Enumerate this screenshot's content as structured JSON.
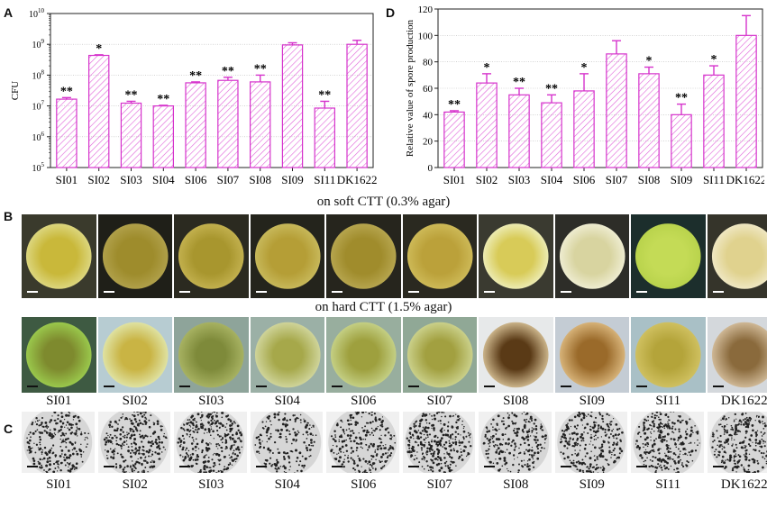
{
  "panels": {
    "a": "A",
    "b": "B",
    "c": "C",
    "d": "D"
  },
  "strains": [
    "SI01",
    "SI02",
    "SI03",
    "SI04",
    "SI06",
    "SI07",
    "SI08",
    "SI09",
    "SI11",
    "DK1622"
  ],
  "captions": {
    "soft": "on soft CTT (0.3% agar)",
    "hard": "on hard CTT (1.5% agar)"
  },
  "colors": {
    "bar_edge": "#d633cc",
    "hatch": "#e060d8",
    "grid": "#bbbbbb"
  },
  "chart_data": [
    {
      "type": "bar",
      "panel": "A",
      "title": "",
      "xlabel": "",
      "ylabel": "CFU",
      "yscale": "log",
      "ylim_exp": [
        5,
        10
      ],
      "ytick_labels": [
        "10^5",
        "10^6",
        "10^7",
        "10^8",
        "10^9",
        "10^10"
      ],
      "categories": [
        "SI01",
        "SI02",
        "SI03",
        "SI04",
        "SI06",
        "SI07",
        "SI08",
        "SI09",
        "SI11",
        "DK1622"
      ],
      "values_log10": [
        7.22,
        8.64,
        7.09,
        7.0,
        7.75,
        7.83,
        7.78,
        8.98,
        6.93,
        9.0
      ],
      "errors_log10": [
        0.05,
        0.02,
        0.06,
        0.02,
        0.03,
        0.1,
        0.22,
        0.07,
        0.22,
        0.13
      ],
      "significance": [
        "**",
        "*",
        "**",
        "**",
        "**",
        "**",
        "**",
        "",
        "**",
        ""
      ]
    },
    {
      "type": "bar",
      "panel": "D",
      "title": "",
      "xlabel": "",
      "ylabel": "Relative value of spore production",
      "ylim": [
        0,
        120
      ],
      "yticks": [
        0,
        20,
        40,
        60,
        80,
        100,
        120
      ],
      "categories": [
        "SI01",
        "SI02",
        "SI03",
        "SI04",
        "SI06",
        "SI07",
        "SI08",
        "SI09",
        "SI11",
        "DK1622"
      ],
      "values": [
        42,
        64,
        55,
        49,
        58,
        86,
        71,
        40,
        70,
        100
      ],
      "errors": [
        1,
        7,
        5,
        6,
        13,
        10,
        5,
        8,
        7,
        15
      ],
      "significance": [
        "**",
        "*",
        "**",
        "**",
        "*",
        "",
        "*",
        "**",
        "*",
        ""
      ]
    }
  ],
  "colonies_soft": [
    {
      "bg": "#3a3a2c",
      "outer": "#dcd67e",
      "inner": "#c9b83a"
    },
    {
      "bg": "#1f1f18",
      "outer": "#b0a04a",
      "inner": "#9e8c2c"
    },
    {
      "bg": "#2b2a20",
      "outer": "#c2b04e",
      "inner": "#a8962e"
    },
    {
      "bg": "#24241c",
      "outer": "#c7b85a",
      "inner": "#b59e36"
    },
    {
      "bg": "#26251d",
      "outer": "#b6a54e",
      "inner": "#a08c2c"
    },
    {
      "bg": "#2a2920",
      "outer": "#cdb957",
      "inner": "#bba13a"
    },
    {
      "bg": "#3a3a30",
      "outer": "#ecebb2",
      "inner": "#d8cb58"
    },
    {
      "bg": "#2d2d28",
      "outer": "#eeecd0",
      "inner": "#d8d4a0"
    },
    {
      "bg": "#1c2e2c",
      "outer": "#b9d34c",
      "inner": "#c4db56"
    },
    {
      "bg": "#35342a",
      "outer": "#efe7c2",
      "inner": "#e0d28e"
    }
  ],
  "colonies_hard": [
    {
      "bg": "#3e5a42",
      "outer": "#9ac84c",
      "inner": "#7e8a2e"
    },
    {
      "bg": "#b7ccd2",
      "outer": "#dfe2a2",
      "inner": "#c9b444"
    },
    {
      "bg": "#8ea49a",
      "outer": "#a7b262",
      "inner": "#7e8a3a"
    },
    {
      "bg": "#9bb0a6",
      "outer": "#cfd49a",
      "inner": "#a6a84a"
    },
    {
      "bg": "#98ae9e",
      "outer": "#c4cf84",
      "inner": "#9ea03e"
    },
    {
      "bg": "#90a896",
      "outer": "#cad08a",
      "inner": "#a2a040"
    },
    {
      "bg": "#e7e9ea",
      "outer": "#cbb48a",
      "inner": "#5a3a16"
    },
    {
      "bg": "#c4ccd4",
      "outer": "#d6b278",
      "inner": "#9a6a2a"
    },
    {
      "bg": "#a9c0c6",
      "outer": "#cfc060",
      "inner": "#b4a43a"
    },
    {
      "bg": "#d4d8dc",
      "outer": "#cfb896",
      "inner": "#8a6a3c"
    }
  ]
}
